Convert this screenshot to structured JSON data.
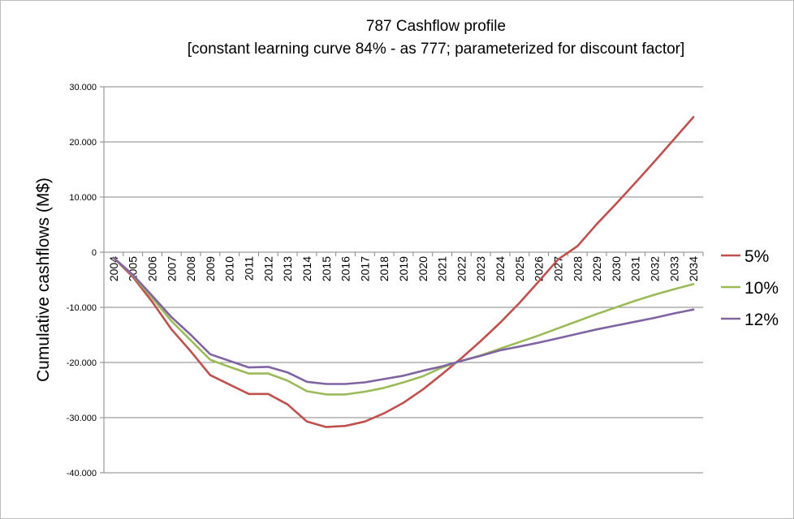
{
  "chart_data": {
    "type": "line",
    "title": "787 Cashflow profile",
    "subtitle": "[constant learning curve 84% - as 777; parameterized for discount factor]",
    "xlabel": "",
    "ylabel": "Cumulative cashflows (M$)",
    "ylim": [
      -40000,
      30000
    ],
    "yticks": [
      {
        "value": 30000,
        "label": "30.000"
      },
      {
        "value": 20000,
        "label": "20.000"
      },
      {
        "value": 10000,
        "label": "10.000"
      },
      {
        "value": 0,
        "label": "0"
      },
      {
        "value": -10000,
        "label": "-10.000"
      },
      {
        "value": -20000,
        "label": "-20.000"
      },
      {
        "value": -30000,
        "label": "-30.000"
      },
      {
        "value": -40000,
        "label": "-40.000"
      }
    ],
    "grid": true,
    "legend_position": "right",
    "x": [
      "2004",
      "2005",
      "2006",
      "2007",
      "2008",
      "2009",
      "2010",
      "2011",
      "2012",
      "2013",
      "2014",
      "2015",
      "2016",
      "2017",
      "2018",
      "2019",
      "2020",
      "2021",
      "2022",
      "2023",
      "2024",
      "2025",
      "2026",
      "2027",
      "2028",
      "2029",
      "2030",
      "2031",
      "2032",
      "2033",
      "2034"
    ],
    "series": [
      {
        "name": "5%",
        "color": "#c0504d",
        "values": [
          -1000,
          -4500,
          -9000,
          -14000,
          -18000,
          -22300,
          -24000,
          -25700,
          -25700,
          -27600,
          -30700,
          -31700,
          -31500,
          -30700,
          -29200,
          -27300,
          -24900,
          -22100,
          -19200,
          -16100,
          -12800,
          -9200,
          -5300,
          -1300,
          1100,
          5100,
          8800,
          12600,
          16500,
          20500,
          24500
        ]
      },
      {
        "name": "10%",
        "color": "#9bbb59",
        "values": [
          -1000,
          -4200,
          -8300,
          -12500,
          -16000,
          -19500,
          -20800,
          -22000,
          -22000,
          -23300,
          -25200,
          -25800,
          -25800,
          -25300,
          -24600,
          -23600,
          -22500,
          -20900,
          -19700,
          -18700,
          -17500,
          -16300,
          -15100,
          -13800,
          -12500,
          -11200,
          -10000,
          -8800,
          -7700,
          -6700,
          -5800
        ]
      },
      {
        "name": "12%",
        "color": "#8064a2",
        "values": [
          -1000,
          -4100,
          -7900,
          -11800,
          -15000,
          -18500,
          -19700,
          -20900,
          -20800,
          -21800,
          -23500,
          -23900,
          -23900,
          -23600,
          -23000,
          -22400,
          -21500,
          -20700,
          -19700,
          -18800,
          -17800,
          -17100,
          -16400,
          -15600,
          -14800,
          -14000,
          -13300,
          -12600,
          -11900,
          -11100,
          -10400
        ]
      }
    ]
  }
}
